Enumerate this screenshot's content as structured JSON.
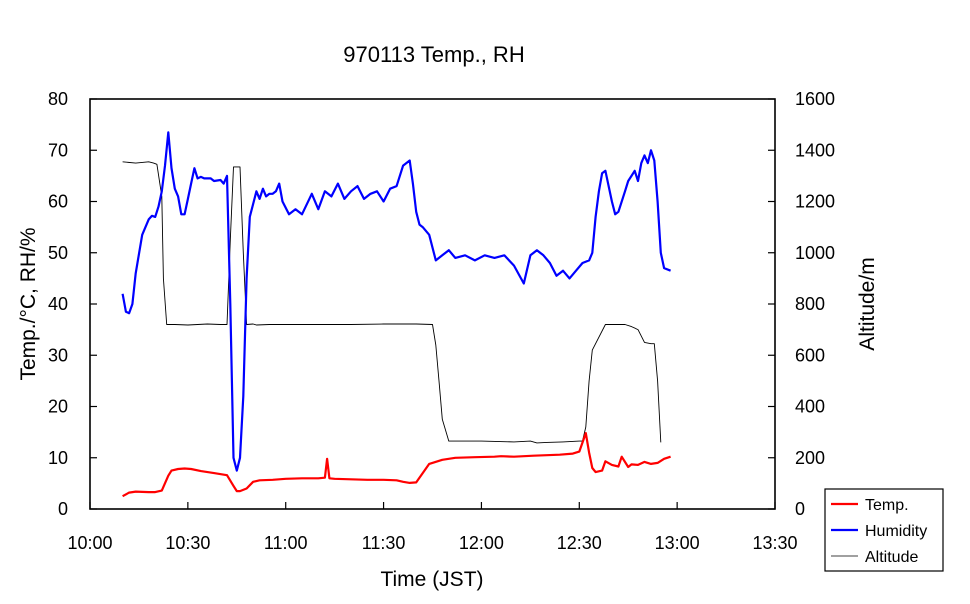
{
  "chart_data": {
    "type": "line",
    "title": "970113 Temp., RH",
    "xlabel": "Time (JST)",
    "ylabel": "Temp./°C, RH/%",
    "y2label": "Altitude/m",
    "x_ticks": [
      "10:00",
      "10:30",
      "11:00",
      "11:30",
      "12:00",
      "12:30",
      "13:00",
      "13:30"
    ],
    "xlim_minutes": [
      0,
      210
    ],
    "ylim": [
      0,
      80
    ],
    "y_ticks": [
      "0",
      "10",
      "20",
      "30",
      "40",
      "50",
      "60",
      "70",
      "80"
    ],
    "y2lim": [
      0,
      1600
    ],
    "y2_ticks": [
      "0",
      "200",
      "400",
      "600",
      "800",
      "1000",
      "1200",
      "1400",
      "1600"
    ],
    "grid": false,
    "legend_position": "bottom-right",
    "series": [
      {
        "name": "Temp.",
        "axis": "left",
        "color": "#ff0000",
        "x": [
          10,
          12,
          14,
          18,
          20,
          22,
          24,
          25,
          27,
          29,
          31,
          34,
          38,
          42,
          44,
          45,
          46,
          48,
          50,
          52,
          56,
          60,
          65,
          70,
          72,
          72.7,
          73.4,
          75,
          80,
          85,
          90,
          94,
          96,
          98,
          100,
          104,
          108,
          112,
          118,
          124,
          126,
          130,
          136,
          140,
          144,
          148,
          150,
          152,
          153,
          154,
          155,
          157,
          158,
          160,
          162,
          163,
          165,
          166,
          168,
          170,
          172,
          174,
          176,
          178
        ],
        "y": [
          2.5,
          3.2,
          3.4,
          3.3,
          3.3,
          3.6,
          6.5,
          7.5,
          7.8,
          7.9,
          7.8,
          7.4,
          7.0,
          6.6,
          4.5,
          3.5,
          3.5,
          4.0,
          5.3,
          5.6,
          5.7,
          5.9,
          6.0,
          6.0,
          6.1,
          9.8,
          6.0,
          5.9,
          5.8,
          5.7,
          5.7,
          5.6,
          5.3,
          5.1,
          5.2,
          8.8,
          9.6,
          10.0,
          10.1,
          10.2,
          10.3,
          10.2,
          10.4,
          10.5,
          10.6,
          10.8,
          11.2,
          14.8,
          11.0,
          8.0,
          7.2,
          7.5,
          9.3,
          8.6,
          8.3,
          10.2,
          8.2,
          8.7,
          8.6,
          9.2,
          8.8,
          9.0,
          9.8,
          10.2
        ]
      },
      {
        "name": "Humidity",
        "axis": "left",
        "color": "#0000ff",
        "x": [
          10,
          11,
          12,
          13,
          14,
          16,
          18,
          19,
          20,
          21,
          22,
          23,
          24,
          25,
          26,
          27,
          28,
          29,
          30,
          31,
          32,
          33,
          34,
          35,
          37,
          38,
          40,
          41,
          42,
          43,
          44,
          45,
          46,
          47,
          48,
          49,
          50,
          51,
          52,
          53,
          54,
          55,
          56,
          57,
          58,
          59,
          61,
          63,
          65,
          68,
          70,
          72,
          74,
          76,
          78,
          80,
          82,
          84,
          86,
          88,
          90,
          92,
          94,
          96,
          98,
          99,
          100,
          101,
          102,
          104,
          106,
          108,
          110,
          112,
          115,
          118,
          121,
          124,
          127,
          130,
          133,
          135,
          137,
          139,
          141,
          143,
          145,
          147,
          149,
          151,
          153,
          154,
          155,
          156,
          157,
          158,
          160,
          161,
          162,
          164,
          165,
          166,
          167,
          168,
          169,
          170,
          171,
          172,
          173,
          174,
          175,
          176,
          178
        ],
        "y": [
          42.0,
          38.5,
          38.2,
          40.0,
          46.0,
          53.5,
          56.5,
          57.2,
          57.0,
          59.0,
          62.0,
          67.0,
          73.5,
          66.5,
          62.5,
          61.0,
          57.5,
          57.5,
          60.5,
          63.5,
          66.5,
          64.5,
          64.8,
          64.5,
          64.5,
          64.0,
          64.2,
          63.5,
          65.0,
          40.0,
          10.0,
          7.5,
          10.0,
          22.0,
          45.0,
          57.0,
          59.5,
          62.0,
          60.5,
          62.5,
          61.0,
          61.5,
          61.5,
          62.0,
          63.5,
          60.0,
          57.5,
          58.5,
          57.5,
          61.5,
          58.5,
          62.0,
          61.0,
          63.5,
          60.5,
          62.0,
          63.0,
          60.5,
          61.5,
          62.0,
          60.0,
          62.5,
          63.0,
          67.0,
          68.0,
          63.5,
          58.0,
          55.5,
          55.0,
          53.5,
          48.5,
          49.5,
          50.5,
          49.0,
          49.5,
          48.5,
          49.5,
          49.0,
          49.5,
          47.5,
          44.0,
          49.5,
          50.5,
          49.5,
          48.0,
          45.5,
          46.5,
          45.0,
          46.5,
          48.0,
          48.5,
          50.0,
          57.0,
          62.0,
          65.5,
          66.0,
          60.0,
          57.5,
          58.0,
          62.0,
          64.0,
          65.0,
          66.0,
          64.0,
          67.5,
          69.0,
          67.5,
          70.0,
          68.0,
          60.0,
          50.0,
          47.0,
          46.5
        ]
      },
      {
        "name": "Altitude",
        "axis": "right",
        "color": "#000000",
        "x": [
          10,
          14,
          18,
          19.5,
          20.5,
          22,
          22.5,
          23.5,
          26,
          30,
          36,
          40,
          42,
          43,
          44,
          46,
          47,
          48,
          50,
          51,
          55,
          60,
          70,
          80,
          90,
          100,
          105,
          106,
          107,
          108,
          110,
          112,
          120,
          130,
          135,
          137,
          140,
          145,
          150,
          151,
          152,
          153,
          154,
          158,
          162,
          164,
          166,
          168,
          170,
          172,
          173,
          174,
          175
        ],
        "y": [
          1355,
          1350,
          1355,
          1350,
          1345,
          1220,
          900,
          720,
          720,
          718,
          722,
          720,
          720,
          1050,
          1335,
          1335,
          1000,
          720,
          722,
          718,
          720,
          720,
          720,
          720,
          722,
          722,
          720,
          640,
          500,
          350,
          265,
          265,
          265,
          262,
          265,
          258,
          260,
          262,
          265,
          265,
          320,
          500,
          620,
          720,
          720,
          720,
          712,
          700,
          650,
          645,
          645,
          500,
          260
        ]
      }
    ]
  }
}
